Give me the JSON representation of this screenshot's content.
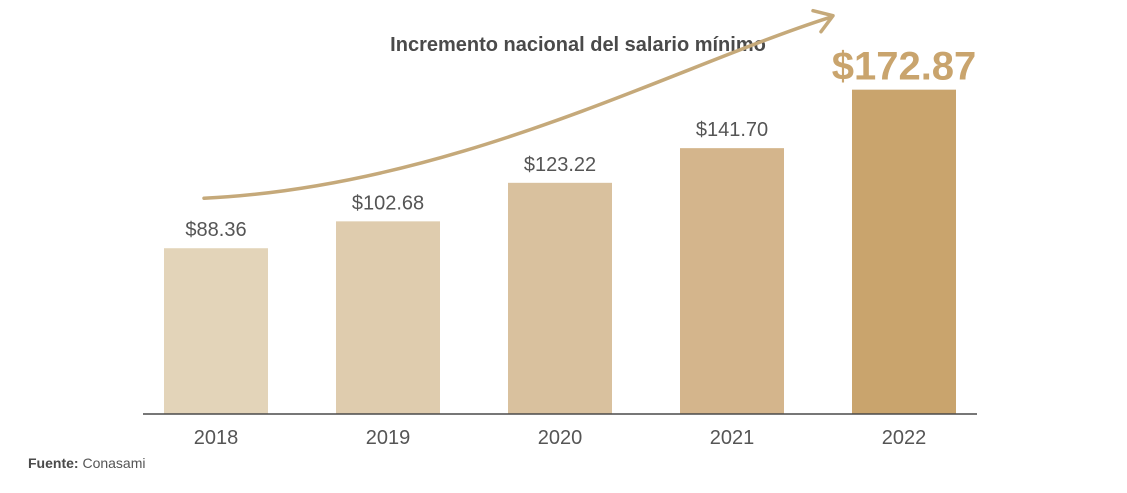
{
  "chart_data": {
    "type": "bar",
    "title": "Incremento nacional del salario mínimo",
    "categories": [
      "2018",
      "2019",
      "2020",
      "2021",
      "2022"
    ],
    "values": [
      88.36,
      102.68,
      123.22,
      141.7,
      172.87
    ],
    "value_labels": [
      "$88.36",
      "$102.68",
      "$123.22",
      "$141.70",
      "$172.87"
    ],
    "bar_colors": [
      "#e3d4b9",
      "#dfccae",
      "#d9c19e",
      "#d4b58c",
      "#c9a46d"
    ],
    "highlight_color": "#c9a46d",
    "label_color": "#555555",
    "arrow_color": "#c5a97a",
    "axis_color": "#4a4a4a",
    "trend_arrow": true,
    "ylim": [
      0,
      210
    ],
    "xlabel": "",
    "ylabel": "",
    "grid": false,
    "legend": "none"
  },
  "source": {
    "label": "Fuente:",
    "text": "Conasami"
  }
}
